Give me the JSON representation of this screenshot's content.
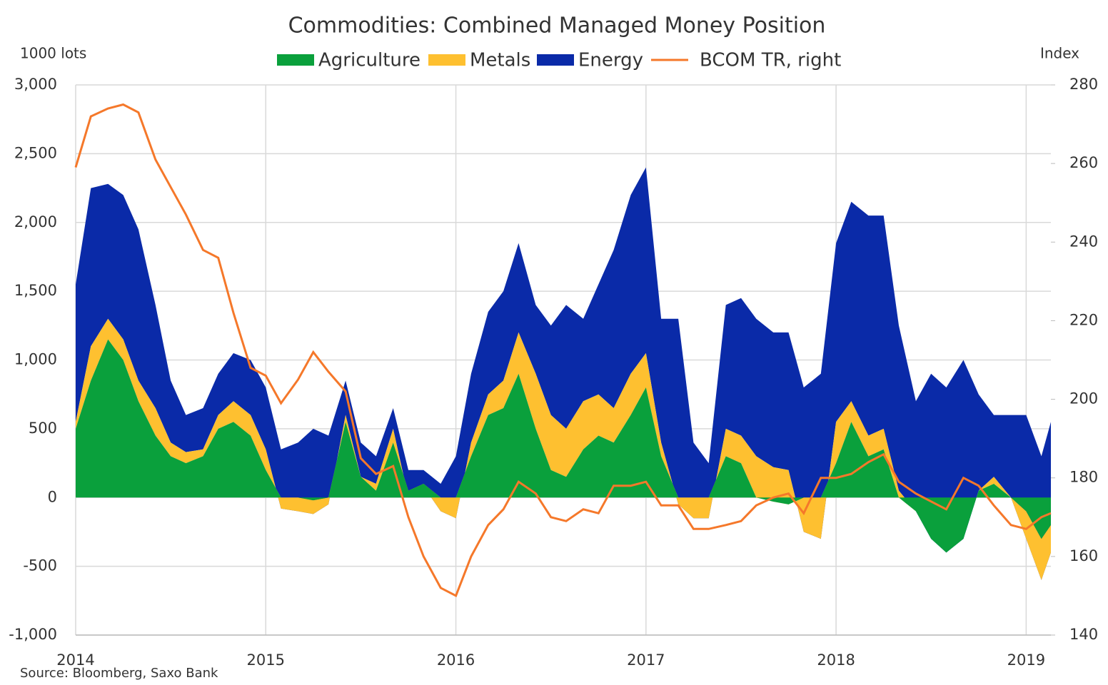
{
  "chart_data": {
    "type": "stacked_area_line",
    "title": "Commodities: Combined Managed Money Position",
    "y_label": "1000 lots",
    "y2_label": "Index",
    "source": "Source: Bloomberg, Saxo Bank",
    "x": [
      2014,
      2014.08,
      2014.17,
      2014.25,
      2014.33,
      2014.42,
      2014.5,
      2014.58,
      2014.67,
      2014.75,
      2014.83,
      2014.92,
      2015,
      2015.08,
      2015.17,
      2015.25,
      2015.33,
      2015.42,
      2015.5,
      2015.58,
      2015.67,
      2015.75,
      2015.83,
      2015.92,
      2016,
      2016.08,
      2016.17,
      2016.25,
      2016.33,
      2016.42,
      2016.5,
      2016.58,
      2016.67,
      2016.75,
      2016.83,
      2016.92,
      2017,
      2017.08,
      2017.17,
      2017.25,
      2017.33,
      2017.42,
      2017.5,
      2017.58,
      2017.67,
      2017.75,
      2017.83,
      2017.92,
      2018,
      2018.08,
      2018.17,
      2018.25,
      2018.33,
      2018.42,
      2018.5,
      2018.58,
      2018.67,
      2018.75,
      2018.83,
      2018.92,
      2019,
      2019.08,
      2019.13
    ],
    "xlim": [
      2014,
      2019.13
    ],
    "xticks": [
      2014,
      2015,
      2016,
      2017,
      2018,
      2019
    ],
    "ylim": [
      -1000,
      3000
    ],
    "yticks": [
      {
        "value": -1000,
        "label": "-1,000"
      },
      -500,
      0,
      500,
      {
        "value": 1000,
        "label": "1,000"
      },
      {
        "value": 1500,
        "label": "1,500"
      },
      {
        "value": 2000,
        "label": "2,000"
      },
      {
        "value": 2500,
        "label": "2,500"
      },
      {
        "value": 3000,
        "label": "3,000"
      }
    ],
    "y2lim": [
      140,
      280
    ],
    "y2ticks": [
      140,
      160,
      180,
      200,
      220,
      240,
      260,
      280
    ],
    "grid": true,
    "series": [
      {
        "name": "Agriculture",
        "color": "#0aa03c",
        "kind": "area",
        "values": [
          500,
          850,
          1150,
          1000,
          700,
          450,
          300,
          250,
          300,
          500,
          550,
          450,
          200,
          0,
          0,
          -20,
          0,
          550,
          150,
          50,
          400,
          50,
          100,
          0,
          0,
          300,
          600,
          650,
          900,
          500,
          200,
          150,
          350,
          450,
          400,
          600,
          800,
          300,
          0,
          0,
          0,
          300,
          250,
          0,
          -30,
          -50,
          0,
          0,
          250,
          550,
          300,
          350,
          0,
          -100,
          -300,
          -400,
          -300,
          50,
          100,
          0,
          -100,
          -300,
          -200
        ]
      },
      {
        "name": "Metals",
        "color": "#fec030",
        "kind": "area",
        "values": [
          50,
          250,
          150,
          150,
          150,
          200,
          100,
          80,
          50,
          100,
          150,
          150,
          150,
          -80,
          -100,
          -100,
          -50,
          50,
          0,
          50,
          100,
          -50,
          -20,
          -100,
          -150,
          100,
          150,
          200,
          300,
          400,
          400,
          350,
          350,
          300,
          250,
          300,
          250,
          100,
          -50,
          -150,
          -150,
          200,
          200,
          300,
          250,
          250,
          -250,
          -300,
          300,
          150,
          150,
          150,
          50,
          0,
          0,
          0,
          0,
          0,
          50,
          0,
          -200,
          -300,
          -200
        ]
      },
      {
        "name": "Energy",
        "color": "#0a2aa8",
        "kind": "area",
        "values": [
          1000,
          1150,
          980,
          1050,
          1100,
          750,
          450,
          270,
          300,
          300,
          350,
          400,
          450,
          430,
          500,
          620,
          500,
          250,
          250,
          200,
          150,
          200,
          120,
          200,
          450,
          500,
          600,
          650,
          650,
          500,
          650,
          900,
          600,
          800,
          1150,
          1300,
          1350,
          900,
          1350,
          550,
          400,
          900,
          1000,
          1000,
          980,
          1000,
          1050,
          1200,
          1300,
          1450,
          1600,
          1550,
          1200,
          800,
          1200,
          1200,
          1300,
          700,
          450,
          600,
          900,
          900,
          950
        ]
      },
      {
        "name": "BCOM TR, right",
        "color": "#f5782a",
        "kind": "line",
        "axis": "y2",
        "values": [
          259,
          272,
          274,
          275,
          273,
          261,
          254,
          247,
          238,
          236,
          222,
          208,
          206,
          199,
          205,
          212,
          207,
          202,
          185,
          181,
          183,
          170,
          160,
          152,
          150,
          160,
          168,
          172,
          179,
          176,
          170,
          169,
          172,
          171,
          178,
          178,
          179,
          173,
          173,
          167,
          167,
          168,
          169,
          173,
          175,
          176,
          171,
          180,
          180,
          181,
          184,
          186,
          179,
          176,
          174,
          172,
          180,
          178,
          173,
          168,
          167,
          170,
          171
        ]
      }
    ]
  }
}
